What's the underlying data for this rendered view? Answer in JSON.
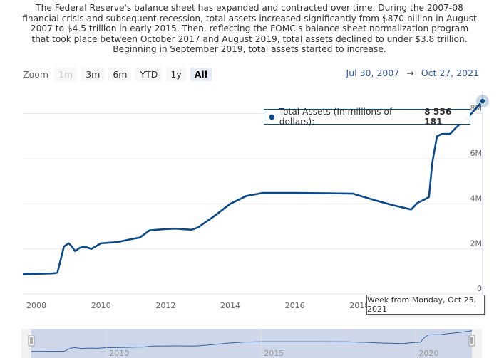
{
  "intro": "The Federal Reserve's balance sheet has expanded and contracted over time. During the 2007-08 financial crisis and subsequent recession, total assets increased significantly from $870 billion in August 2007 to $4.5 trillion in early 2015. Then, reflecting the FOMC's balance sheet normalization program that took place between October 2017 and August 2019, total assets declined to under $3.8 trillion. Beginning in September 2019, total assets started to increase.",
  "zoom": {
    "label": "Zoom",
    "buttons": [
      {
        "label": "1m",
        "state": "disabled"
      },
      {
        "label": "3m",
        "state": "normal"
      },
      {
        "label": "6m",
        "state": "normal"
      },
      {
        "label": "YTD",
        "state": "normal"
      },
      {
        "label": "1y",
        "state": "normal"
      },
      {
        "label": "All",
        "state": "active"
      }
    ]
  },
  "range": {
    "from": "Jul 30, 2007",
    "arrow": "→",
    "to": "Oct 27, 2021"
  },
  "tooltip": {
    "series": "Total Assets (In millions of dollars):",
    "value": "8 556 181"
  },
  "crosshair_label": "Week from Monday, Oct 25, 2021",
  "colors": {
    "line": "#0b4a8a",
    "navigator_fill": "#c7d2e8",
    "grid": "#e6e6e6"
  },
  "chart_data": {
    "type": "line",
    "title": "",
    "xlabel": "",
    "ylabel": "",
    "series": [
      {
        "name": "Total Assets (In millions of dollars)",
        "points": [
          [
            2007.58,
            870000
          ],
          [
            2008.0,
            890000
          ],
          [
            2008.5,
            910000
          ],
          [
            2008.65,
            940000
          ],
          [
            2008.75,
            1500000
          ],
          [
            2008.85,
            2100000
          ],
          [
            2009.0,
            2250000
          ],
          [
            2009.1,
            2100000
          ],
          [
            2009.2,
            1900000
          ],
          [
            2009.35,
            2050000
          ],
          [
            2009.5,
            2100000
          ],
          [
            2009.7,
            2000000
          ],
          [
            2010.0,
            2250000
          ],
          [
            2010.5,
            2300000
          ],
          [
            2011.0,
            2450000
          ],
          [
            2011.2,
            2500000
          ],
          [
            2011.5,
            2820000
          ],
          [
            2012.0,
            2880000
          ],
          [
            2012.3,
            2900000
          ],
          [
            2012.8,
            2850000
          ],
          [
            2013.0,
            2950000
          ],
          [
            2013.5,
            3450000
          ],
          [
            2014.0,
            4000000
          ],
          [
            2014.5,
            4350000
          ],
          [
            2015.0,
            4480000
          ],
          [
            2016.0,
            4480000
          ],
          [
            2017.0,
            4470000
          ],
          [
            2017.8,
            4450000
          ],
          [
            2018.5,
            4150000
          ],
          [
            2019.0,
            3950000
          ],
          [
            2019.6,
            3750000
          ],
          [
            2019.8,
            4050000
          ],
          [
            2020.0,
            4180000
          ],
          [
            2020.15,
            4300000
          ],
          [
            2020.25,
            5800000
          ],
          [
            2020.4,
            7000000
          ],
          [
            2020.55,
            7100000
          ],
          [
            2020.8,
            7100000
          ],
          [
            2021.0,
            7400000
          ],
          [
            2021.4,
            7900000
          ],
          [
            2021.81,
            8556181
          ]
        ]
      }
    ],
    "yticks": [
      {
        "value": 0,
        "label": "0"
      },
      {
        "value": 2000000,
        "label": "2M"
      },
      {
        "value": 4000000,
        "label": "4M"
      },
      {
        "value": 6000000,
        "label": "6M"
      },
      {
        "value": 8000000,
        "label": "8M"
      }
    ],
    "xticks": [
      2008,
      2010,
      2012,
      2014,
      2016,
      2018,
      2020
    ],
    "navigator_labels": [
      2010,
      2015,
      2020
    ],
    "ylim": [
      0,
      9000000
    ],
    "xlim": [
      2007.58,
      2021.81
    ],
    "grid": true,
    "y_axis_side": "right",
    "legend": "none"
  }
}
